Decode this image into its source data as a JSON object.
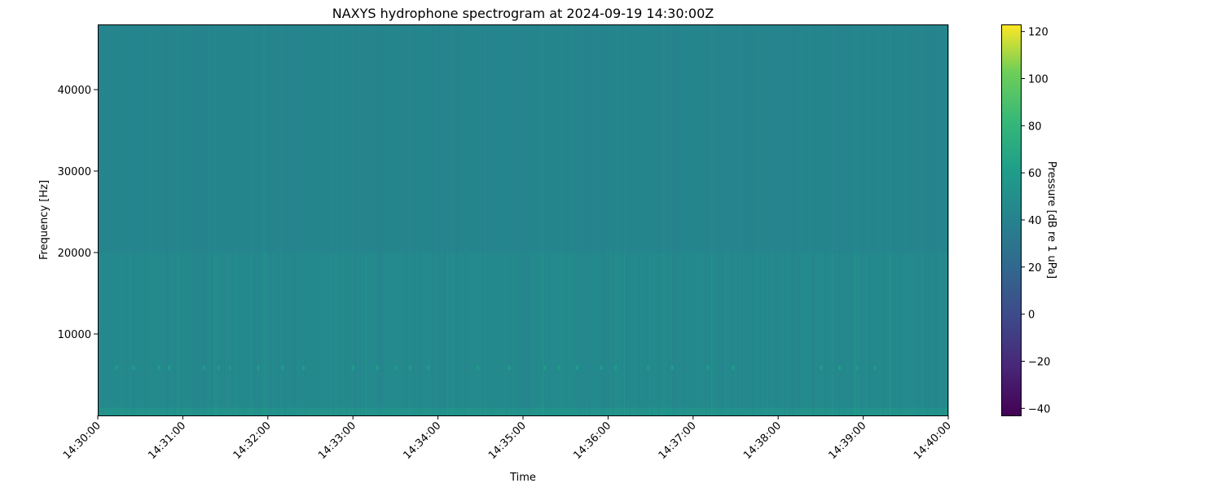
{
  "chart_data": {
    "type": "heatmap",
    "title": "NAXYS hydrophone spectrogram at 2024-09-19 14:30:00Z",
    "xlabel": "Time",
    "ylabel": "Frequency [Hz]",
    "x_ticks": [
      "14:30:00",
      "14:31:00",
      "14:32:00",
      "14:33:00",
      "14:34:00",
      "14:35:00",
      "14:36:00",
      "14:37:00",
      "14:38:00",
      "14:39:00",
      "14:40:00"
    ],
    "xlim": [
      "14:30:00",
      "14:40:00"
    ],
    "y_ticks": [
      10000,
      20000,
      30000,
      40000
    ],
    "ylim": [
      0,
      48000
    ],
    "colorbar": {
      "label": "Pressure [dB re 1 uPa]",
      "colormap": "viridis",
      "range": [
        -43,
        123
      ],
      "ticks": [
        -40,
        -20,
        0,
        20,
        40,
        60,
        80,
        100,
        120
      ]
    },
    "bands": [
      {
        "freq_range_hz": [
          0,
          1000
        ],
        "level_db": 52
      },
      {
        "freq_range_hz": [
          1000,
          20000
        ],
        "level_db": 45
      },
      {
        "freq_range_hz": [
          20000,
          48000
        ],
        "level_db": 42
      }
    ],
    "tonal_band": {
      "freq_hz": 5800,
      "level_db": 60,
      "times": [
        "14:30:13",
        "14:30:25",
        "14:30:43",
        "14:30:50",
        "14:31:15",
        "14:31:25",
        "14:31:33",
        "14:31:53",
        "14:32:10",
        "14:32:25",
        "14:33:00",
        "14:33:17",
        "14:33:30",
        "14:33:40",
        "14:33:53",
        "14:34:28",
        "14:34:50",
        "14:35:15",
        "14:35:25",
        "14:35:38",
        "14:35:55",
        "14:36:05",
        "14:36:28",
        "14:36:45",
        "14:37:10",
        "14:37:28",
        "14:38:30",
        "14:38:43",
        "14:38:55",
        "14:39:08"
      ]
    },
    "grid": false
  }
}
